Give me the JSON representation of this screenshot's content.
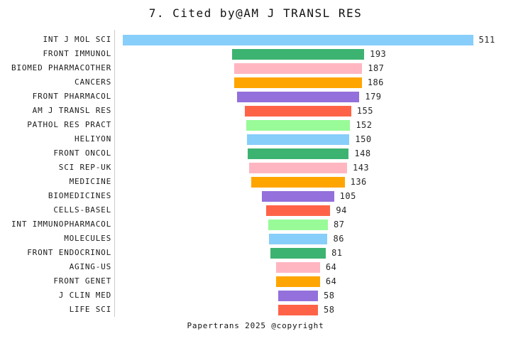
{
  "page": {
    "title": "7. Cited by@AM J TRANSL RES",
    "footer": "Papertrans 2025 @copyright",
    "background_color": "#ffffff",
    "text_color": "#1a1a1a",
    "axis_line_color": "#cccccc"
  },
  "chart_data": {
    "type": "bar",
    "orientation": "horizontal",
    "layout": "centered-funnel",
    "title": "7. Cited by@AM J TRANSL RES",
    "xlabel": "",
    "ylabel": "",
    "grid": false,
    "legend": false,
    "value_labels_shown": true,
    "categories": [
      "INT J MOL SCI",
      "FRONT IMMUNOL",
      "BIOMED PHARMACOTHER",
      "CANCERS",
      "FRONT PHARMACOL",
      "AM J TRANSL RES",
      "PATHOL RES PRACT",
      "HELIYON",
      "FRONT ONCOL",
      "SCI REP-UK",
      "MEDICINE",
      "BIOMEDICINES",
      "CELLS-BASEL",
      "INT IMMUNOPHARMACOL",
      "MOLECULES",
      "FRONT ENDOCRINOL",
      "AGING-US",
      "FRONT GENET",
      "J CLIN MED",
      "LIFE SCI"
    ],
    "values": [
      511,
      193,
      187,
      186,
      179,
      155,
      152,
      150,
      148,
      143,
      136,
      105,
      94,
      87,
      86,
      81,
      64,
      64,
      58,
      58
    ],
    "palette_cycle": [
      "#87CEFA",
      "#3CB371",
      "#FFB6C1",
      "#FFA500",
      "#9370DB",
      "#FF6347",
      "#98FB98"
    ]
  }
}
